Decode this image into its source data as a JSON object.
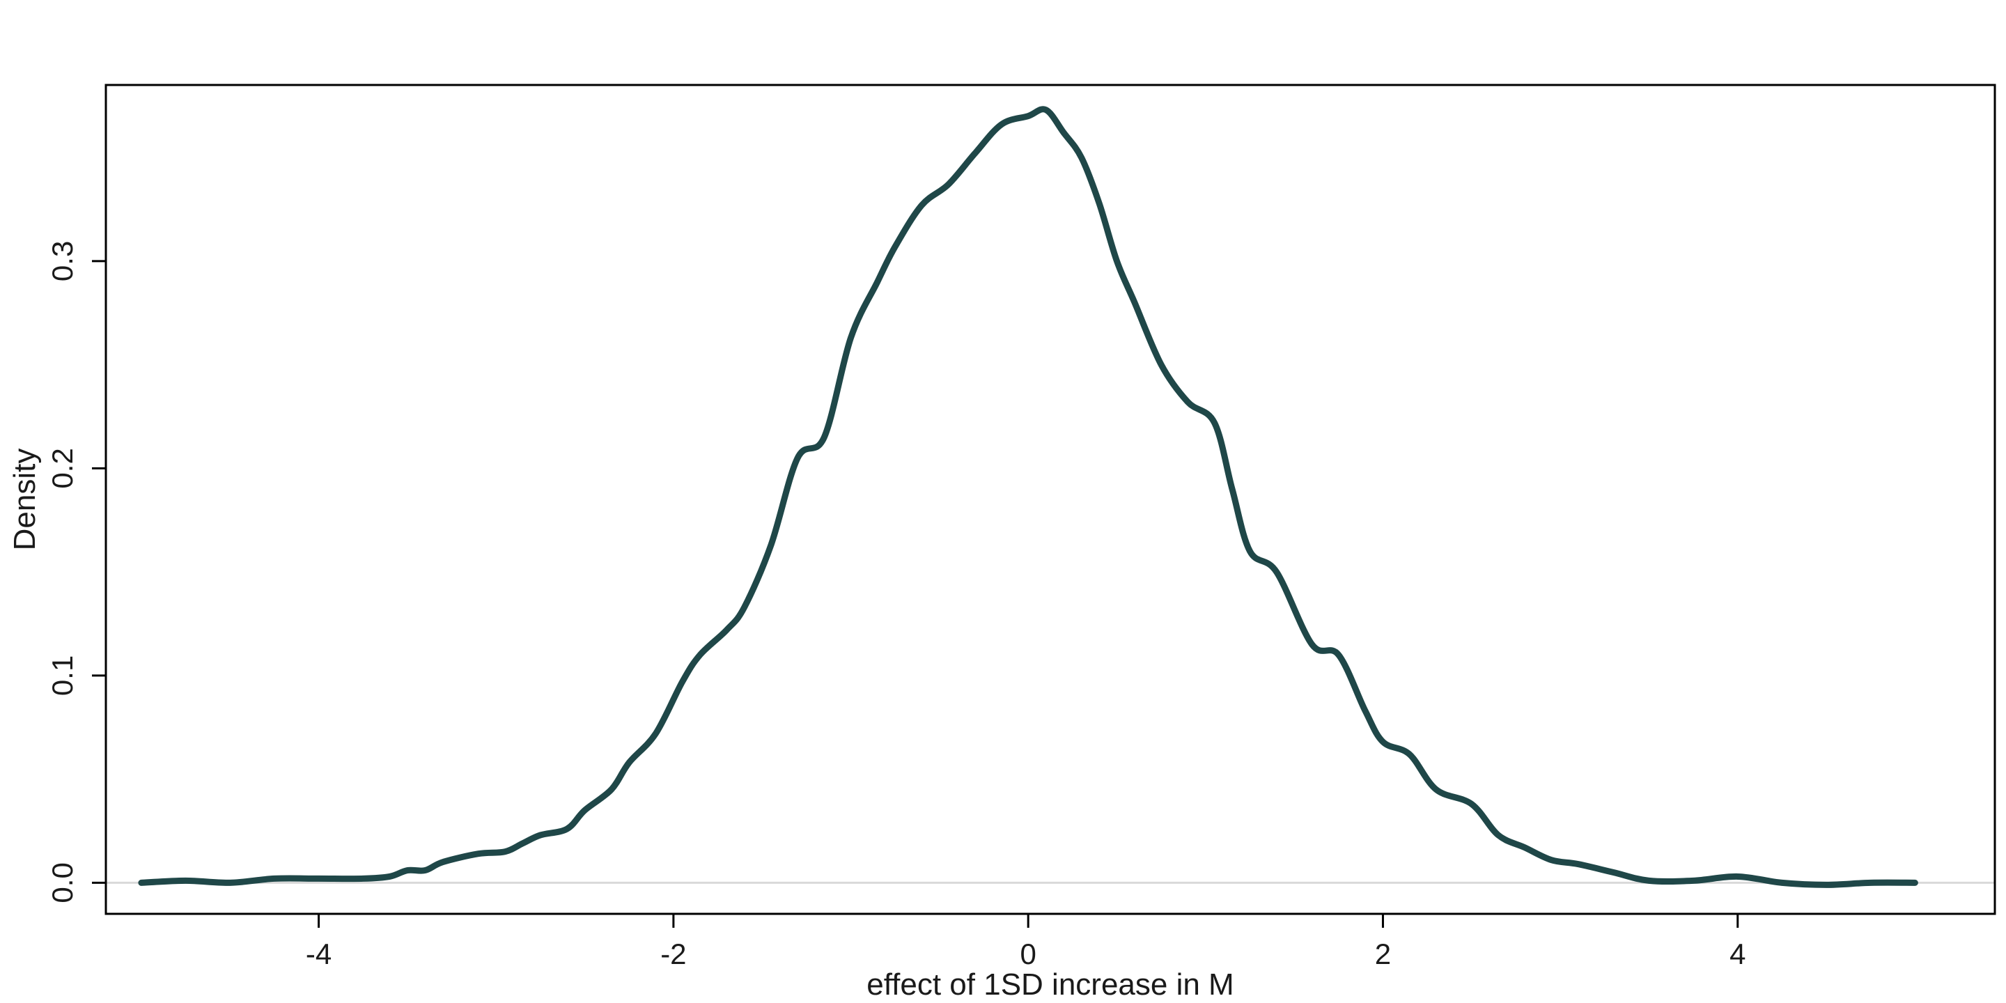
{
  "chart_data": {
    "type": "line",
    "title": "",
    "xlabel": "effect of 1SD increase in M",
    "ylabel": "Density",
    "xlim": [
      -5.2,
      5.45
    ],
    "ylim": [
      -0.015,
      0.385
    ],
    "x_ticks": [
      -4,
      -2,
      0,
      2,
      4
    ],
    "x_tick_labels": [
      "-4",
      "-2",
      "0",
      "2",
      "4"
    ],
    "y_ticks": [
      0.0,
      0.1,
      0.2,
      0.3
    ],
    "y_tick_labels": [
      "0.0",
      "0.1",
      "0.2",
      "0.3"
    ],
    "grid": false,
    "legend": "none",
    "zero_line": true,
    "colors": {
      "line": "#1f4748",
      "zero_line": "#d9d9d9",
      "axes": "#000000"
    },
    "series": [
      {
        "points": [
          [
            -5.0,
            0.0
          ],
          [
            -4.75,
            0.001
          ],
          [
            -4.5,
            0.0
          ],
          [
            -4.25,
            0.002
          ],
          [
            -4.0,
            0.002
          ],
          [
            -3.75,
            0.002
          ],
          [
            -3.6,
            0.003
          ],
          [
            -3.5,
            0.006
          ],
          [
            -3.4,
            0.006
          ],
          [
            -3.3,
            0.01
          ],
          [
            -3.1,
            0.014
          ],
          [
            -2.95,
            0.015
          ],
          [
            -2.85,
            0.019
          ],
          [
            -2.75,
            0.023
          ],
          [
            -2.6,
            0.026
          ],
          [
            -2.5,
            0.035
          ],
          [
            -2.35,
            0.045
          ],
          [
            -2.25,
            0.058
          ],
          [
            -2.1,
            0.072
          ],
          [
            -1.95,
            0.097
          ],
          [
            -1.85,
            0.11
          ],
          [
            -1.7,
            0.122
          ],
          [
            -1.6,
            0.133
          ],
          [
            -1.45,
            0.163
          ],
          [
            -1.3,
            0.205
          ],
          [
            -1.15,
            0.215
          ],
          [
            -1.0,
            0.263
          ],
          [
            -0.85,
            0.29
          ],
          [
            -0.75,
            0.307
          ],
          [
            -0.6,
            0.327
          ],
          [
            -0.45,
            0.337
          ],
          [
            -0.3,
            0.352
          ],
          [
            -0.15,
            0.366
          ],
          [
            0.0,
            0.37
          ],
          [
            0.1,
            0.373
          ],
          [
            0.2,
            0.362
          ],
          [
            0.3,
            0.35
          ],
          [
            0.4,
            0.328
          ],
          [
            0.5,
            0.3
          ],
          [
            0.6,
            0.28
          ],
          [
            0.75,
            0.25
          ],
          [
            0.9,
            0.232
          ],
          [
            1.05,
            0.222
          ],
          [
            1.15,
            0.19
          ],
          [
            1.25,
            0.16
          ],
          [
            1.4,
            0.15
          ],
          [
            1.6,
            0.115
          ],
          [
            1.75,
            0.11
          ],
          [
            1.9,
            0.083
          ],
          [
            2.0,
            0.068
          ],
          [
            2.15,
            0.062
          ],
          [
            2.3,
            0.045
          ],
          [
            2.5,
            0.038
          ],
          [
            2.65,
            0.023
          ],
          [
            2.8,
            0.017
          ],
          [
            2.95,
            0.011
          ],
          [
            3.1,
            0.009
          ],
          [
            3.3,
            0.005
          ],
          [
            3.5,
            0.001
          ],
          [
            3.75,
            0.001
          ],
          [
            4.0,
            0.003
          ],
          [
            4.25,
            0.0
          ],
          [
            4.5,
            -0.001
          ],
          [
            4.75,
            0.0
          ],
          [
            5.0,
            0.0
          ]
        ]
      }
    ]
  }
}
